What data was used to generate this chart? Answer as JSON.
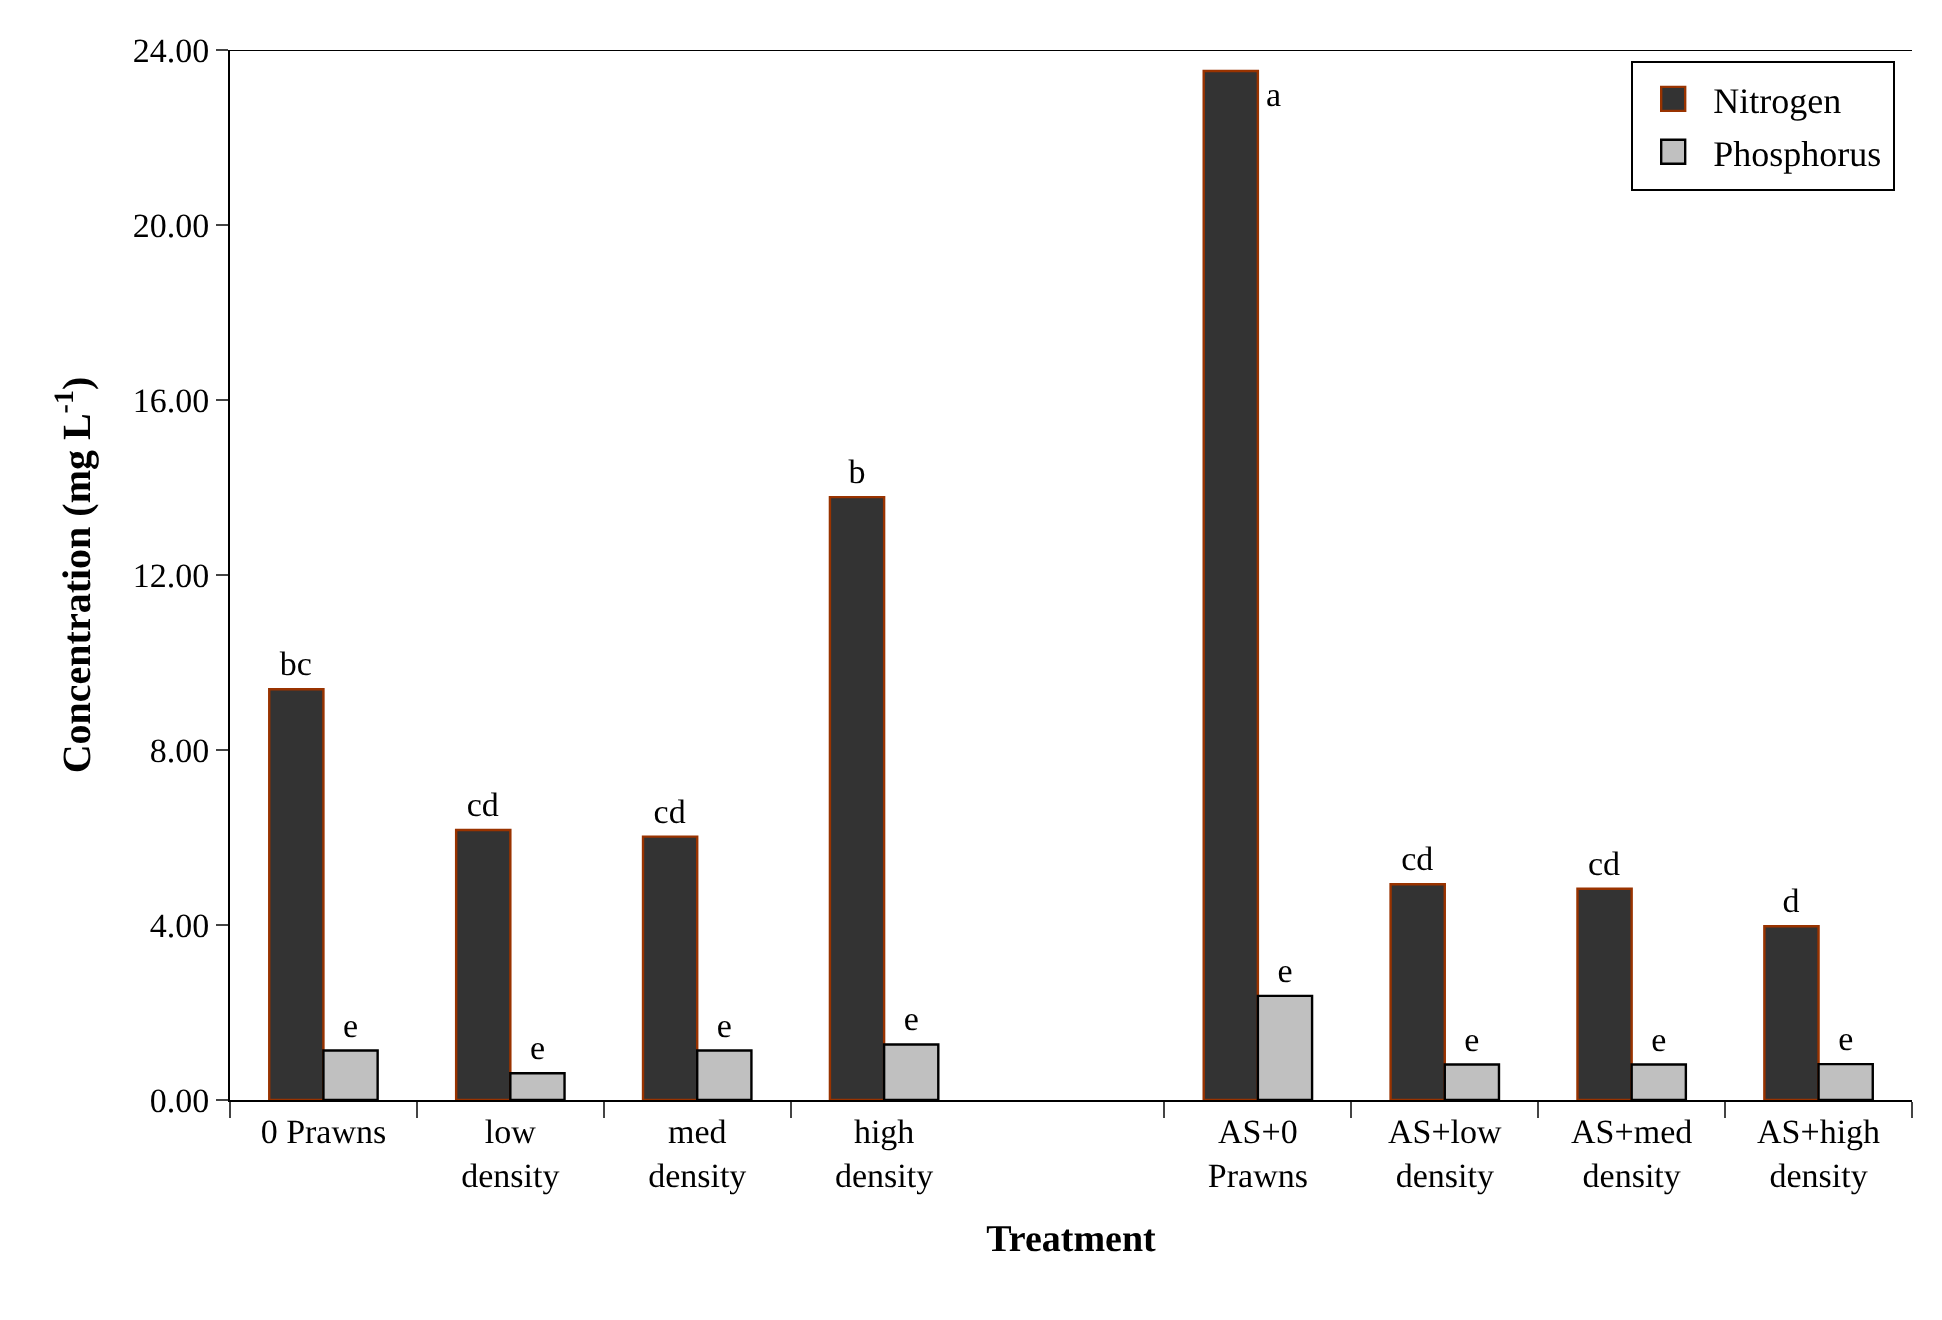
{
  "chart_data": {
    "type": "bar",
    "xlabel": "Treatment",
    "ylabel": "Concentration (mg L$^{-1}$)",
    "categories": [
      "0 Prawns",
      "low\ndensity",
      "med\ndensity",
      "high\ndensity",
      null,
      "AS+0\nPrawns",
      "AS+low\ndensity",
      "AS+med\ndensity",
      "AS+high\ndensity"
    ],
    "series": [
      {
        "name": "Nitrogen",
        "color": "#333333",
        "values": [
          9.39,
          6.17,
          6.02,
          13.78,
          null,
          23.52,
          4.93,
          4.83,
          3.97
        ],
        "value_labels": [
          "bc",
          "cd",
          "cd",
          "b",
          null,
          "a",
          "cd",
          "cd",
          "d"
        ]
      },
      {
        "name": "Phosphorus",
        "color": "#c0c0c0",
        "values": [
          1.13,
          0.61,
          1.13,
          1.27,
          null,
          2.38,
          0.81,
          0.81,
          0.82
        ],
        "value_labels": [
          "e",
          "e",
          "e",
          "e",
          null,
          "e",
          "e",
          "e",
          "e"
        ]
      }
    ],
    "ylim": [
      0,
      24
    ],
    "yticks": [
      {
        "value": 0,
        "label": "0.00"
      },
      {
        "value": 4,
        "label": "4.00"
      },
      {
        "value": 8,
        "label": "8.00"
      },
      {
        "value": 12,
        "label": "12.00"
      },
      {
        "value": 16,
        "label": "16.00"
      },
      {
        "value": 20,
        "label": "20.00"
      },
      {
        "value": 24,
        "label": "24.00"
      }
    ],
    "legend": "top right"
  }
}
